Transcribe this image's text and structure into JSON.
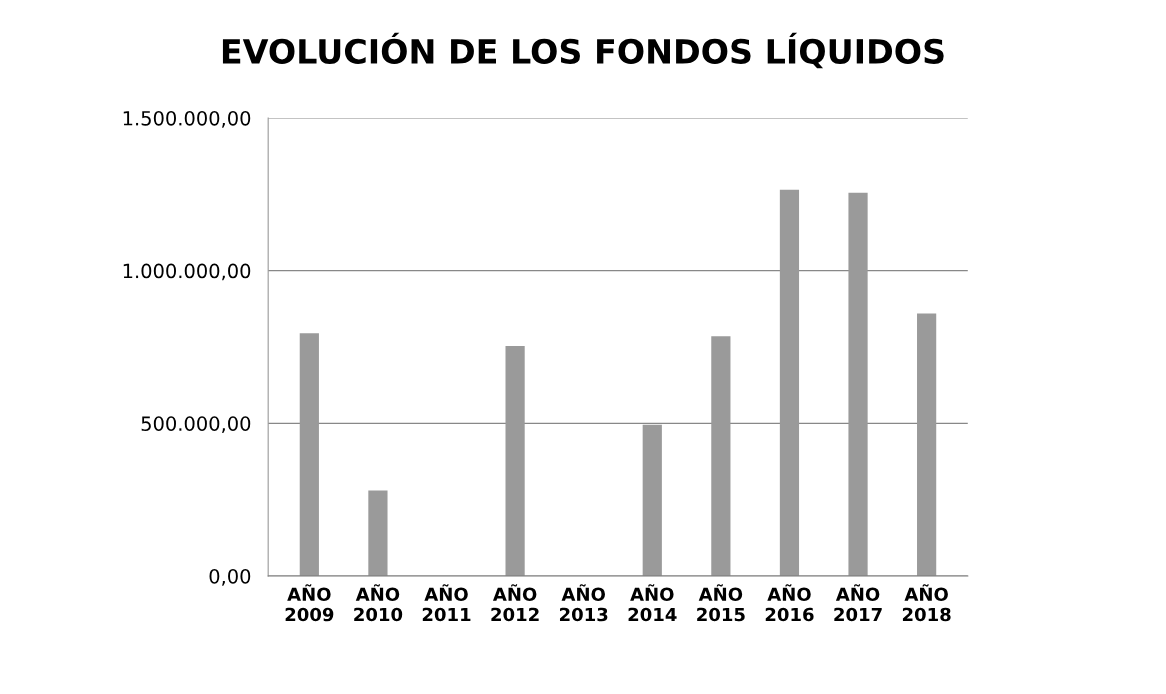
{
  "chart_data": {
    "type": "bar",
    "title": "EVOLUCIÓN DE LOS FONDOS LÍQUIDOS",
    "categories": [
      "AÑO\n2009",
      "AÑO\n2010",
      "AÑO\n2011",
      "AÑO\n2012",
      "AÑO\n2013",
      "AÑO\n2014",
      "AÑO\n2015",
      "AÑO\n2016",
      "AÑO\n2017",
      "AÑO\n2018"
    ],
    "values": [
      795000,
      280000,
      0,
      753000,
      0,
      495000,
      785000,
      1265000,
      1255000,
      860000
    ],
    "color": "#9a9a9a",
    "ylim": [
      0,
      1500000
    ],
    "yticks": [
      {
        "value": 0,
        "label": "0,00"
      },
      {
        "value": 500000,
        "label": "500.000,00"
      },
      {
        "value": 1000000,
        "label": "1.000.000,00"
      },
      {
        "value": 1500000,
        "label": "1.500.000,00"
      }
    ],
    "grid": "y"
  }
}
